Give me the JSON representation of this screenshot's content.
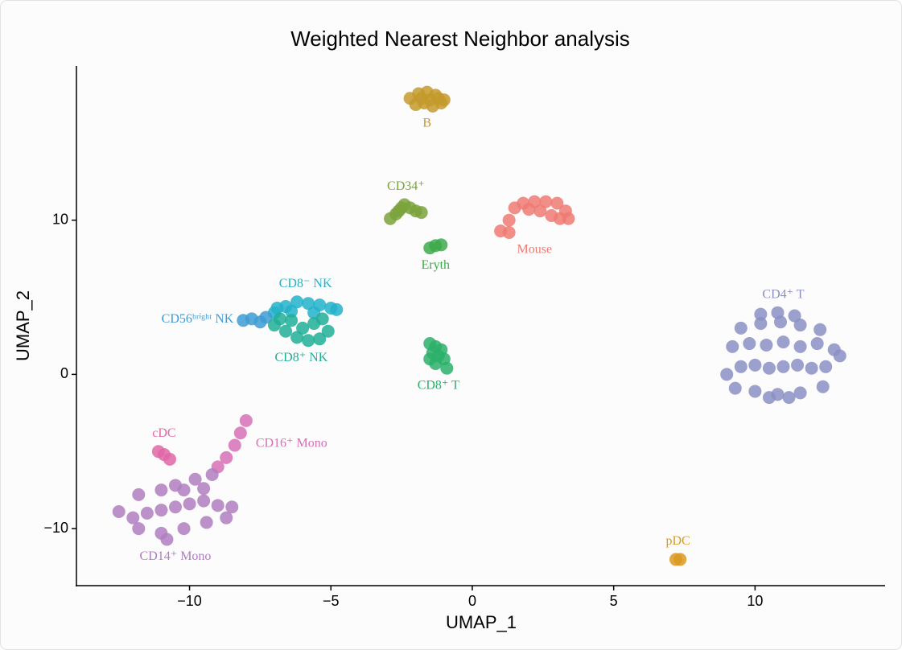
{
  "chart_data": {
    "type": "scatter",
    "title": "Weighted Nearest Neighbor analysis",
    "x_label": "UMAP_1",
    "y_label": "UMAP_2",
    "xlim": [
      -14,
      14.6
    ],
    "ylim": [
      -13.7,
      20
    ],
    "xticks": [
      {
        "value": -10,
        "label": "−10"
      },
      {
        "value": -5,
        "label": "−5"
      },
      0,
      5,
      10
    ],
    "yticks": [
      {
        "value": -10,
        "label": "−10"
      },
      0,
      10
    ],
    "series": [
      {
        "name": "B",
        "color": "#c49a2c",
        "label_position": "below",
        "x": [
          -2.2,
          -1.9,
          -1.6,
          -1.3,
          -1.0,
          -2.0,
          -1.7,
          -1.4,
          -1.1,
          -1.8,
          -1.5,
          -1.2
        ],
        "y": [
          17.9,
          18.2,
          18.3,
          18.1,
          17.8,
          17.5,
          17.6,
          17.4,
          17.6,
          17.9,
          17.8,
          17.9
        ]
      },
      {
        "name": "CD34⁺",
        "color": "#7aa33b",
        "label_position": "above",
        "x": [
          -2.9,
          -2.7,
          -2.5,
          -2.4,
          -2.2,
          -2.0,
          -1.8,
          -2.6
        ],
        "y": [
          10.1,
          10.4,
          10.8,
          11.0,
          10.8,
          10.6,
          10.5,
          10.6
        ]
      },
      {
        "name": "Mouse",
        "color": "#ef7a72",
        "label_position": "below",
        "x": [
          1.0,
          1.3,
          1.3,
          1.5,
          1.8,
          2.2,
          2.6,
          3.0,
          3.3,
          3.4,
          2.8,
          2.4,
          2.0,
          3.1
        ],
        "y": [
          9.3,
          9.2,
          10.0,
          10.8,
          11.1,
          11.2,
          11.2,
          11.1,
          10.6,
          10.1,
          10.3,
          10.6,
          10.7,
          10.1
        ]
      },
      {
        "name": "Eryth",
        "color": "#3daa4b",
        "label_position": "below",
        "x": [
          -1.5,
          -1.3,
          -1.1
        ],
        "y": [
          8.2,
          8.35,
          8.4
        ]
      },
      {
        "name": "CD8⁻ NK",
        "color": "#22b2c9",
        "label_position": "above",
        "x": [
          -7.0,
          -6.6,
          -6.2,
          -5.8,
          -5.4,
          -5.0,
          -4.8,
          -6.4,
          -5.6,
          -6.9
        ],
        "y": [
          4.0,
          4.4,
          4.7,
          4.6,
          4.5,
          4.3,
          4.2,
          4.1,
          4.0,
          4.3
        ]
      },
      {
        "name": "CD56ᵇʳⁱᵍʰᵗ NK",
        "color": "#3d9cd4",
        "label_position": "left",
        "x": [
          -8.1,
          -7.8,
          -7.5,
          -7.3
        ],
        "y": [
          3.5,
          3.6,
          3.4,
          3.7
        ]
      },
      {
        "name": "CD8⁺ NK",
        "color": "#20ae97",
        "label_position": "below",
        "x": [
          -7.0,
          -6.6,
          -6.2,
          -5.8,
          -5.4,
          -5.1,
          -6.4,
          -6.0,
          -5.6,
          -5.3,
          -6.8
        ],
        "y": [
          3.2,
          2.8,
          2.4,
          2.2,
          2.3,
          2.8,
          3.5,
          3.0,
          3.3,
          3.6,
          3.6
        ]
      },
      {
        "name": "CD8⁺ T",
        "color": "#2bb06a",
        "label_position": "below",
        "x": [
          -1.5,
          -1.3,
          -1.1,
          -1.4,
          -1.2,
          -1.0,
          -1.3,
          -0.9,
          -1.5
        ],
        "y": [
          2.0,
          1.8,
          1.6,
          1.4,
          1.2,
          1.0,
          0.7,
          0.4,
          1.0
        ]
      },
      {
        "name": "CD4⁺ T",
        "color": "#8a8fc4",
        "label_position": "above",
        "x": [
          9.0,
          9.5,
          10.0,
          10.5,
          11.0,
          11.5,
          12.0,
          12.5,
          13.0,
          9.2,
          9.8,
          10.4,
          11.0,
          11.6,
          12.2,
          12.8,
          9.5,
          10.2,
          10.9,
          11.6,
          12.3,
          10.2,
          10.8,
          11.4,
          9.3,
          10.0,
          10.8,
          11.6,
          12.4,
          10.5,
          11.2
        ],
        "y": [
          0,
          0.5,
          0.6,
          0.4,
          0.5,
          0.6,
          0.4,
          0.5,
          1.2,
          1.8,
          2.0,
          1.9,
          2.1,
          1.8,
          2.0,
          1.6,
          3.0,
          3.3,
          3.4,
          3.2,
          2.9,
          3.9,
          4.0,
          3.8,
          -0.9,
          -1.1,
          -1.3,
          -1.2,
          -0.8,
          -1.5,
          -1.5
        ]
      },
      {
        "name": "cDC",
        "color": "#e066a6",
        "label_position": "above",
        "x": [
          -11.1,
          -10.9,
          -10.7
        ],
        "y": [
          -5.0,
          -5.2,
          -5.5
        ]
      },
      {
        "name": "CD16⁺ Mono",
        "color": "#d770b5",
        "label_position": "right",
        "x": [
          -8.0,
          -8.2,
          -8.4,
          -8.7,
          -9.0
        ],
        "y": [
          -3.0,
          -3.8,
          -4.6,
          -5.4,
          -6.0
        ]
      },
      {
        "name": "CD14⁺ Mono",
        "color": "#b07ec0",
        "label_position": "below",
        "x": [
          -12.5,
          -12.0,
          -11.5,
          -11.0,
          -10.5,
          -10.0,
          -9.5,
          -9.0,
          -8.5,
          -11.8,
          -11.0,
          -10.2,
          -9.4,
          -8.7,
          -10.5,
          -9.8,
          -9.2,
          -11.8,
          -11.0,
          -10.2,
          -9.5,
          -10.8
        ],
        "y": [
          -8.9,
          -9.3,
          -9.0,
          -8.8,
          -8.6,
          -8.4,
          -8.2,
          -8.5,
          -8.6,
          -10.0,
          -10.3,
          -10.0,
          -9.6,
          -9.3,
          -7.2,
          -6.8,
          -6.5,
          -7.8,
          -7.5,
          -7.5,
          -7.4,
          -10.7
        ]
      },
      {
        "name": "pDC",
        "color": "#d99a22",
        "label_position": "above",
        "x": [
          7.2,
          7.35
        ],
        "y": [
          -12.0,
          -12.0
        ]
      }
    ]
  }
}
